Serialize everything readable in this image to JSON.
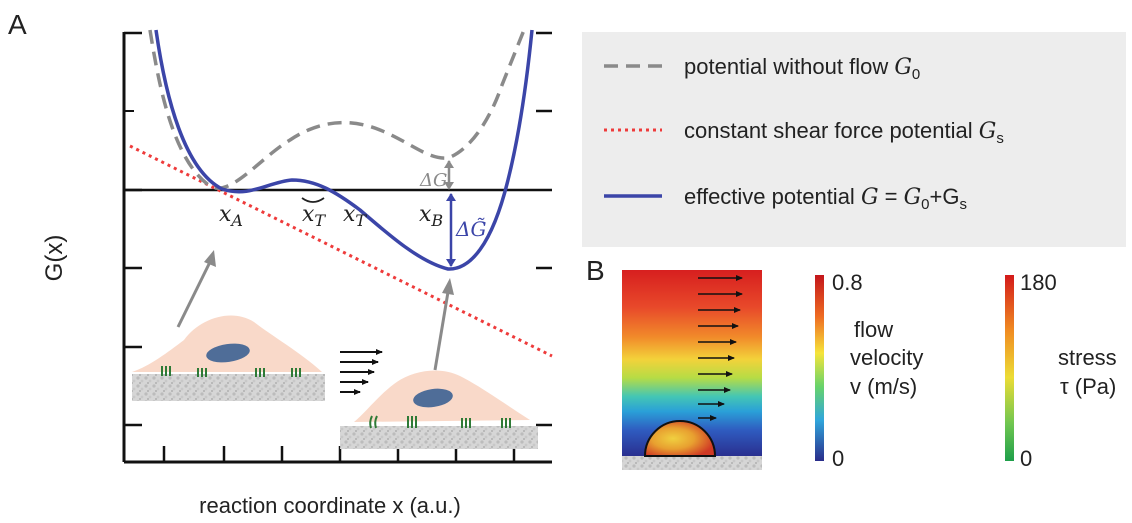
{
  "panel_a": {
    "label": "A",
    "ylabel": "G(x)",
    "xlabel": "reaction coordinate x (a.u.)",
    "points": {
      "x_A": "x_A",
      "x_T_tilde": "x_T",
      "x_T": "x_T",
      "x_B": "x_B"
    },
    "delta_g": "ΔG",
    "delta_g_tilde": "ΔG̃",
    "colors": {
      "no_flow": "#8a8a8a",
      "shear": "#ee3b3b",
      "effective": "#3b45a8",
      "cell": "#f9d9c9",
      "nucleus": "#4f6d98",
      "receptor": "#2e7a36"
    }
  },
  "legend": {
    "items": [
      {
        "pre": "potential without flow ",
        "sym": "G",
        "sub": "0",
        "post": ""
      },
      {
        "pre": "constant shear force potential ",
        "sym": "G",
        "sub": "s",
        "post": ""
      },
      {
        "pre": "effective potential ",
        "sym": "G",
        "sub": "",
        "post": " = "
      }
    ],
    "effective_rhs": [
      "G",
      "0",
      "+G",
      "s"
    ],
    "background": "#ededed"
  },
  "panel_b": {
    "label": "B",
    "velocity_colorbar": {
      "max": "0.8",
      "min": "0",
      "label_lines": [
        "flow",
        "velocity",
        "v (m/s)"
      ]
    },
    "stress_colorbar": {
      "max": "180",
      "min": "0",
      "label_lines": [
        "stress",
        "τ (Pa)"
      ]
    }
  }
}
